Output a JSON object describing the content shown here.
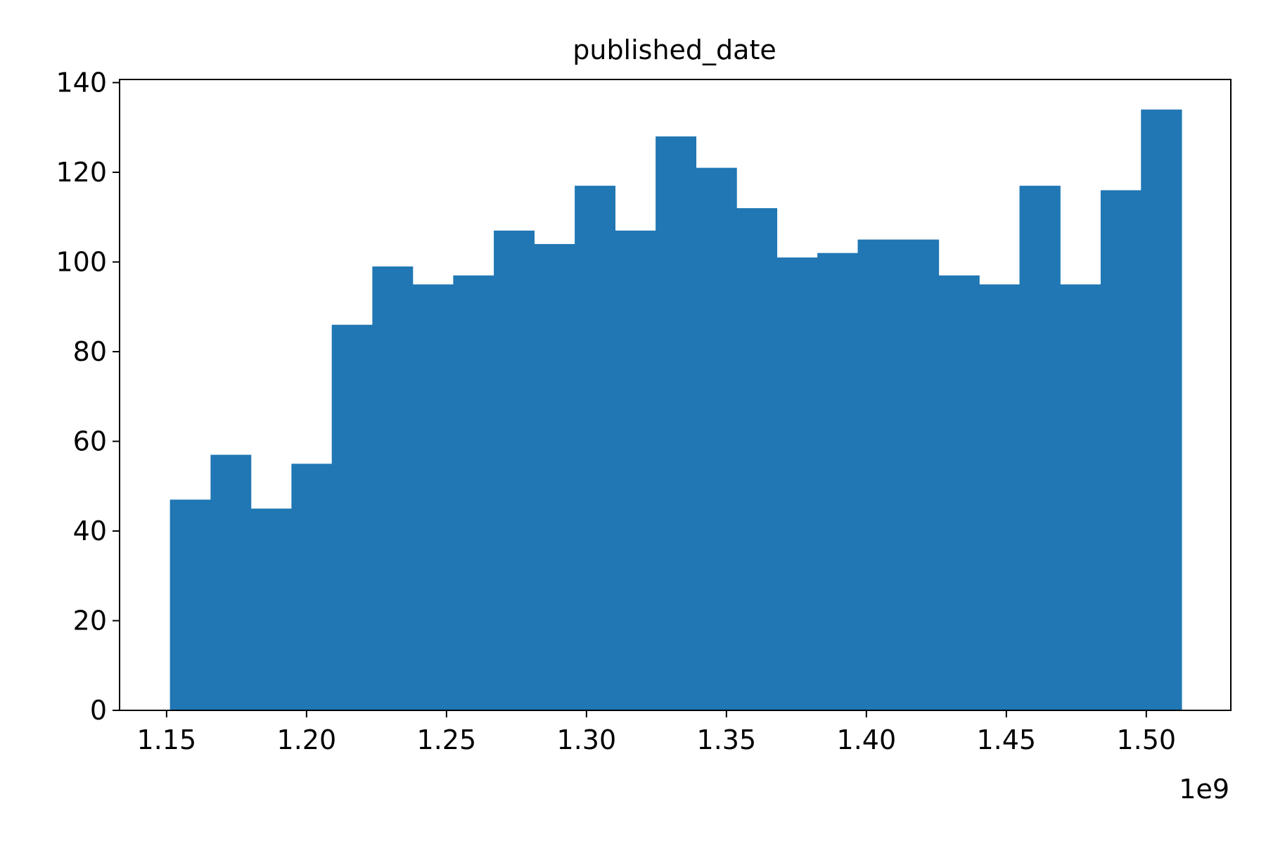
{
  "chart_data": {
    "type": "bar",
    "title": "published_date",
    "xlabel": "",
    "ylabel": "",
    "x_offset_label": "1e9",
    "bar_color": "#2077b4",
    "xlim": [
      1.1332,
      1.5302
    ],
    "ylim": [
      0,
      140.7
    ],
    "grid": false,
    "legend": "none",
    "xticks": [
      1.15,
      1.2,
      1.25,
      1.3,
      1.35,
      1.4,
      1.45,
      1.5
    ],
    "xtick_labels": [
      "1.15",
      "1.20",
      "1.25",
      "1.30",
      "1.35",
      "1.40",
      "1.45",
      "1.50"
    ],
    "yticks": [
      0,
      20,
      40,
      60,
      80,
      100,
      120,
      140
    ],
    "ytick_labels": [
      "0",
      "20",
      "40",
      "60",
      "80",
      "100",
      "120",
      "140"
    ],
    "bin_edges": [
      1.1512,
      1.1657,
      1.1801,
      1.1946,
      1.209,
      1.2235,
      1.2379,
      1.2524,
      1.2669,
      1.2813,
      1.2958,
      1.3102,
      1.3247,
      1.3391,
      1.3536,
      1.368,
      1.3825,
      1.3969,
      1.4114,
      1.4258,
      1.4403,
      1.4547,
      1.4692,
      1.4837,
      1.4981,
      1.5126
    ],
    "values": [
      47,
      57,
      45,
      55,
      86,
      99,
      95,
      97,
      107,
      104,
      117,
      107,
      128,
      121,
      112,
      101,
      102,
      105,
      105,
      97,
      95,
      117,
      95,
      116,
      134
    ]
  }
}
